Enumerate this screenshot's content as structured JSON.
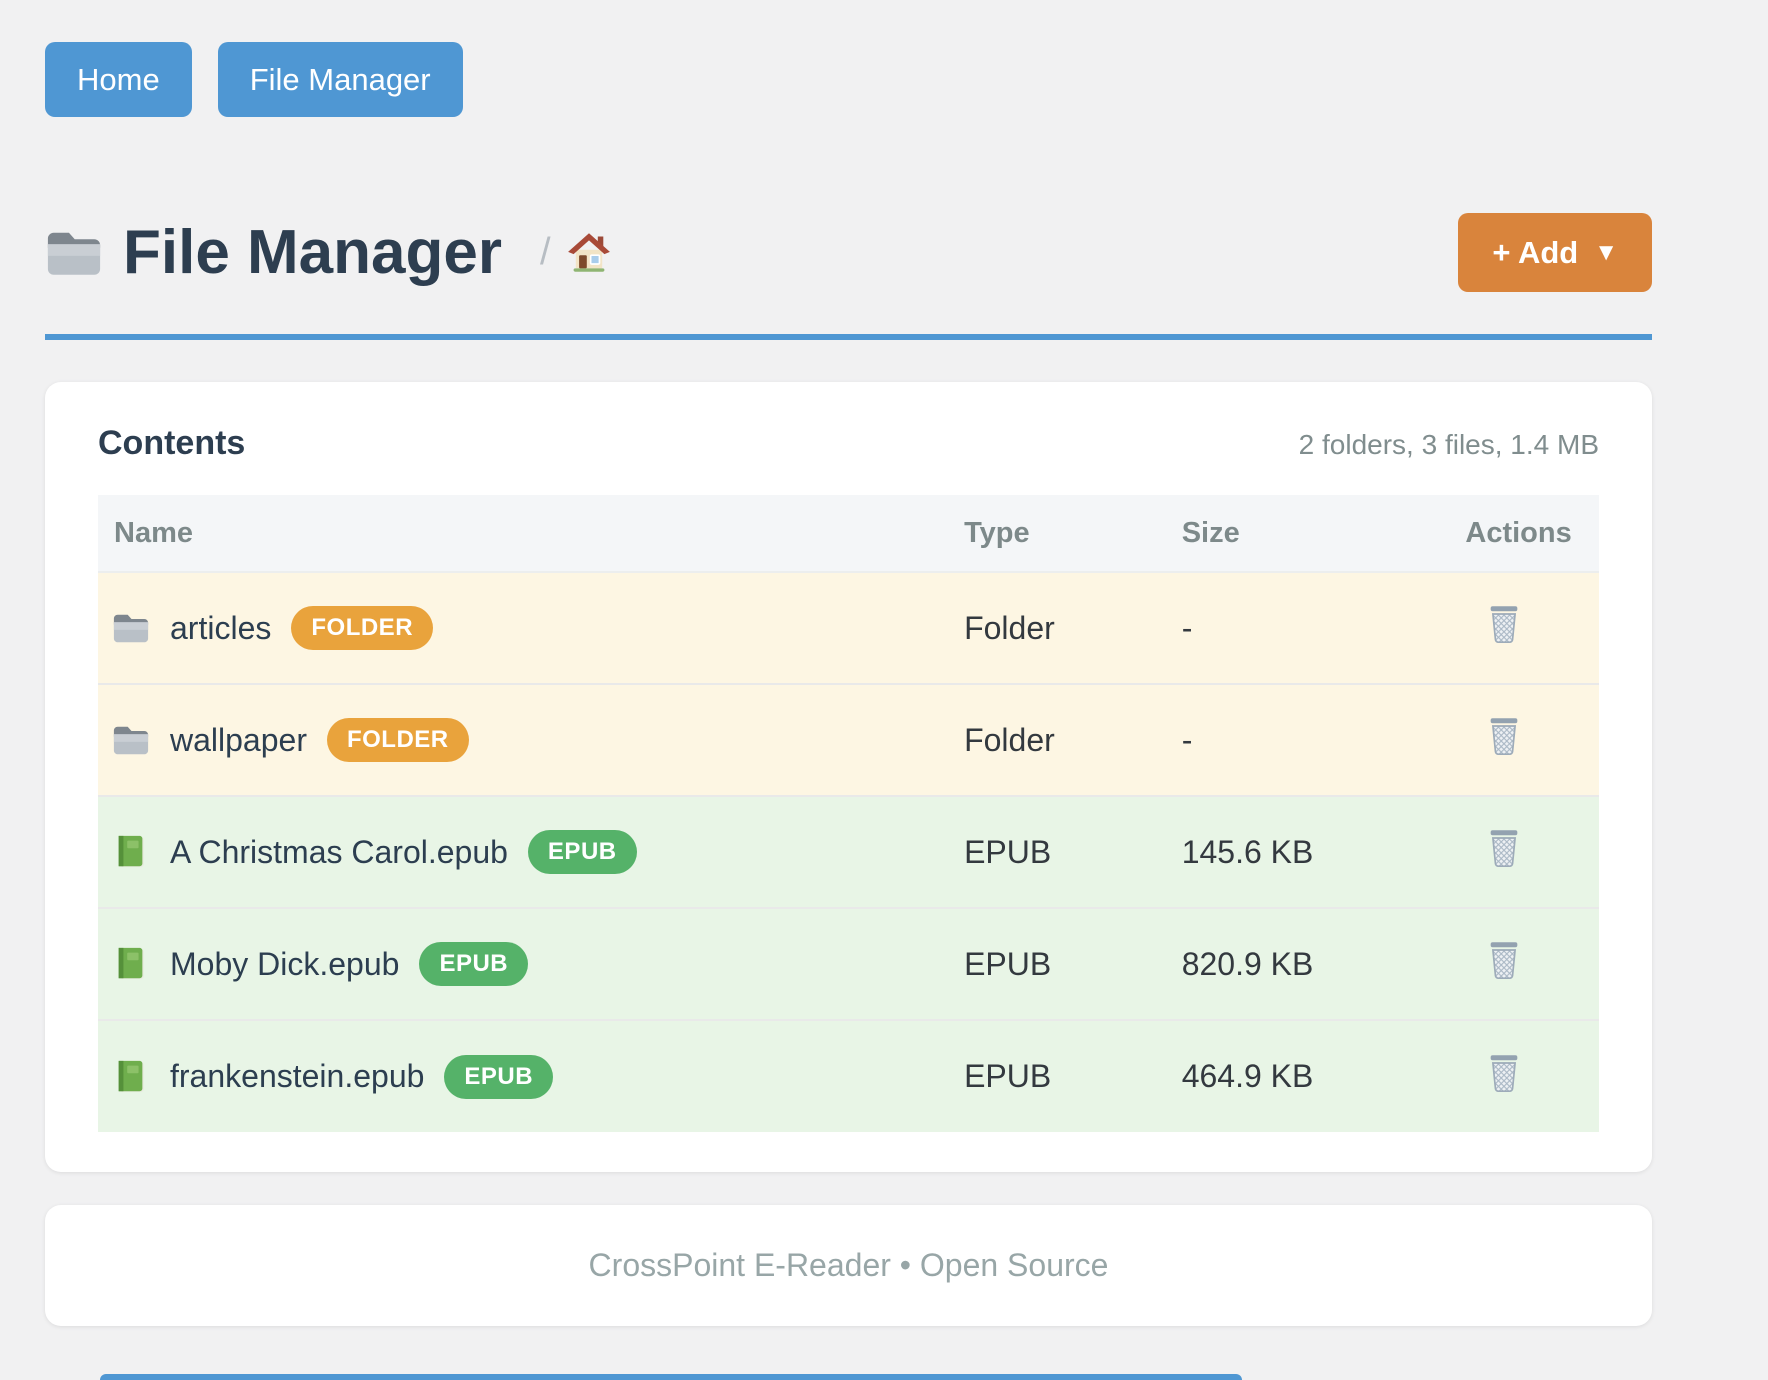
{
  "nav": {
    "home_label": "Home",
    "file_manager_label": "File Manager"
  },
  "header": {
    "title": "File Manager",
    "breadcrumb_separator": "/",
    "add_label": "+ Add",
    "add_caret": "▼"
  },
  "contents": {
    "heading": "Contents",
    "summary": "2 folders, 3 files, 1.4 MB",
    "columns": [
      "Name",
      "Type",
      "Size",
      "Actions"
    ],
    "rows": [
      {
        "name": "articles",
        "badge": "FOLDER",
        "type": "Folder",
        "size": "-",
        "kind": "folder"
      },
      {
        "name": "wallpaper",
        "badge": "FOLDER",
        "type": "Folder",
        "size": "-",
        "kind": "folder"
      },
      {
        "name": "A Christmas Carol.epub",
        "badge": "EPUB",
        "type": "EPUB",
        "size": "145.6 KB",
        "kind": "epub"
      },
      {
        "name": "Moby Dick.epub",
        "badge": "EPUB",
        "type": "EPUB",
        "size": "820.9 KB",
        "kind": "epub"
      },
      {
        "name": "frankenstein.epub",
        "badge": "EPUB",
        "type": "EPUB",
        "size": "464.9 KB",
        "kind": "epub"
      }
    ]
  },
  "footer": {
    "text": "CrossPoint E-Reader • Open Source"
  },
  "icons": {
    "title_icon": "folder-icon",
    "breadcrumb_icon": "home-icon",
    "folder_row_icon": "folder-icon",
    "epub_row_icon": "green-book-icon",
    "delete_icon": "trash-icon",
    "add_button_icon": "caret-down-icon"
  },
  "colors": {
    "page_background": "#f1f1f2",
    "nav_button_blue": "#4f97d3",
    "add_button_orange": "#d9843c",
    "rule_blue": "#4f97d3",
    "folder_row_background": "#fdf6e3",
    "epub_row_background": "#e8f5e6",
    "folder_badge": "#e9a33c",
    "epub_badge": "#55b269",
    "title_text": "#2d3e50",
    "muted_text": "#808d8e"
  }
}
